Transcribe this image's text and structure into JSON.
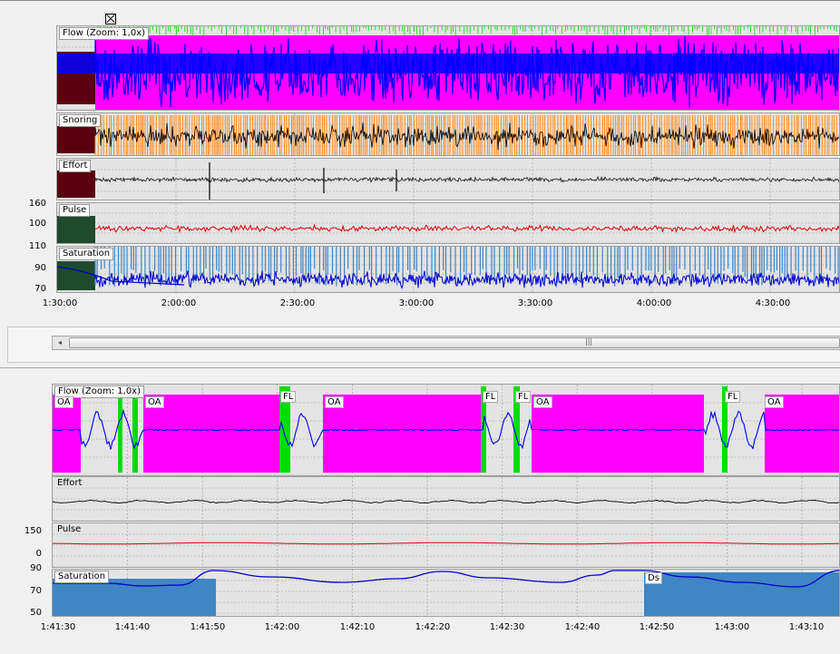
{
  "overview": {
    "channels": {
      "flow": "Flow (Zoom: 1,0x)",
      "snoring": "Snoring",
      "effort": "Effort",
      "pulse": "Pulse",
      "saturation": "Saturation"
    },
    "pulse_ticks": [
      "160",
      "100"
    ],
    "saturation_ticks": [
      "110",
      "90",
      "70"
    ],
    "time_ticks": [
      "1:30:00",
      "2:00:00",
      "2:30:00",
      "3:00:00",
      "3:30:00",
      "4:00:00",
      "4:30:00"
    ]
  },
  "detail": {
    "channels": {
      "flow": "Flow (Zoom: 1,0x)",
      "effort": "Effort",
      "pulse": "Pulse",
      "saturation": "Saturation"
    },
    "events": {
      "oa1": "OA",
      "oa2": "OA",
      "fl1": "FL",
      "oa3": "OA",
      "fl2": "FL",
      "fl3": "FL",
      "oa4": "OA",
      "fl4": "FL",
      "oa5": "OA",
      "ds": "Ds"
    },
    "pulse_ticks": [
      "150",
      "0"
    ],
    "saturation_ticks": [
      "90",
      "70",
      "50"
    ],
    "time_ticks": [
      "1:41:30",
      "1:41:40",
      "1:41:50",
      "1:42:00",
      "1:42:10",
      "1:42:20",
      "1:42:30",
      "1:42:40",
      "1:42:50",
      "1:43:00",
      "1:43:10"
    ]
  },
  "colors": {
    "flow_signal": "#0000ff",
    "flow_event": "#ff00ff",
    "flow_limitation": "#00dd00",
    "snoring_fill": "#ff8c1a",
    "pulse_signal": "#dd0000",
    "saturation_signal": "#0000cc",
    "saturation_event": "#3f86c4"
  }
}
